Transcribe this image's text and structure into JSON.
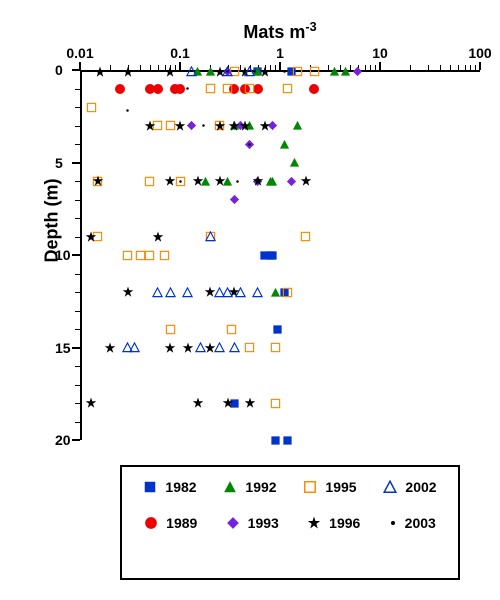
{
  "chart": {
    "type": "scatter",
    "x_axis": {
      "title_html": "Mats m<sup>-3</sup>",
      "scale": "log",
      "min": 0.01,
      "max": 100,
      "tick_values": [
        0.01,
        0.1,
        1,
        10,
        100
      ],
      "tick_labels": [
        "0.01",
        "0.1",
        "1",
        "10",
        "100"
      ],
      "position": "top",
      "label_fontsize": 18,
      "tick_fontsize": 14,
      "color": "#000000"
    },
    "y_axis": {
      "title": "Depth (m)",
      "scale": "linear",
      "min": 0,
      "max": 20,
      "reversed": true,
      "tick_values": [
        0,
        5,
        10,
        15,
        20
      ],
      "tick_labels": [
        "0",
        "5",
        "10",
        "15",
        "20"
      ],
      "minor_tick_step": 1,
      "label_fontsize": 18,
      "tick_fontsize": 14,
      "color": "#000000"
    },
    "background_color": "#ffffff",
    "series": [
      {
        "name": "1982",
        "marker": "square-filled",
        "color": "#0033cc",
        "size": 11,
        "points": [
          [
            0.7,
            10
          ],
          [
            0.8,
            10
          ],
          [
            0.85,
            10
          ],
          [
            1.1,
            12
          ],
          [
            0.95,
            14
          ],
          [
            0.35,
            18
          ],
          [
            0.9,
            20
          ],
          [
            1.2,
            20
          ],
          [
            0.6,
            0.1
          ],
          [
            1.3,
            0.1
          ]
        ]
      },
      {
        "name": "1989",
        "marker": "circle-filled",
        "color": "#ee0000",
        "size": 12,
        "points": [
          [
            0.025,
            1
          ],
          [
            0.05,
            1
          ],
          [
            0.06,
            1
          ],
          [
            0.09,
            1
          ],
          [
            0.1,
            1
          ],
          [
            0.35,
            1
          ],
          [
            0.45,
            1
          ],
          [
            0.6,
            1
          ],
          [
            2.2,
            1
          ]
        ]
      },
      {
        "name": "1992",
        "marker": "triangle-filled",
        "color": "#008800",
        "size": 11,
        "points": [
          [
            3.5,
            0.1
          ],
          [
            4.5,
            0.1
          ],
          [
            1.5,
            3
          ],
          [
            1.1,
            4
          ],
          [
            1.4,
            5
          ],
          [
            0.85,
            6
          ],
          [
            0.9,
            12
          ],
          [
            0.6,
            0.1
          ],
          [
            0.35,
            3
          ],
          [
            0.5,
            3
          ],
          [
            0.18,
            6
          ],
          [
            0.3,
            6
          ],
          [
            0.8,
            6
          ],
          [
            0.15,
            0.1
          ],
          [
            0.2,
            0.1
          ]
        ]
      },
      {
        "name": "1993",
        "marker": "diamond-filled",
        "color": "#7722dd",
        "size": 11,
        "points": [
          [
            6,
            0.1
          ],
          [
            0.5,
            4
          ],
          [
            0.35,
            7
          ],
          [
            0.85,
            3
          ],
          [
            0.4,
            3
          ],
          [
            0.6,
            6
          ],
          [
            0.3,
            0.1
          ],
          [
            1.3,
            6
          ],
          [
            0.13,
            3
          ]
        ]
      },
      {
        "name": "1995",
        "marker": "square-open",
        "color": "#ff8800",
        "size": 11,
        "points": [
          [
            0.013,
            2
          ],
          [
            0.015,
            6
          ],
          [
            0.015,
            9
          ],
          [
            0.03,
            10
          ],
          [
            0.04,
            10
          ],
          [
            0.05,
            10
          ],
          [
            0.07,
            10
          ],
          [
            0.08,
            14
          ],
          [
            0.33,
            14
          ],
          [
            0.9,
            18
          ],
          [
            1.2,
            12
          ],
          [
            0.2,
            1
          ],
          [
            0.3,
            1
          ],
          [
            0.5,
            1
          ],
          [
            1.2,
            1
          ],
          [
            1.5,
            0.1
          ],
          [
            2.2,
            0.1
          ],
          [
            0.06,
            3
          ],
          [
            0.08,
            3
          ],
          [
            0.25,
            3
          ],
          [
            0.05,
            6
          ],
          [
            0.1,
            6
          ],
          [
            0.2,
            9
          ],
          [
            1.8,
            9
          ],
          [
            0.5,
            15
          ],
          [
            0.9,
            15
          ],
          [
            0.35,
            0.1
          ]
        ]
      },
      {
        "name": "1996",
        "marker": "star-filled",
        "color": "#000000",
        "size": 12,
        "points": [
          [
            0.016,
            0.1
          ],
          [
            0.03,
            0.1
          ],
          [
            0.015,
            6
          ],
          [
            0.013,
            9
          ],
          [
            0.03,
            12
          ],
          [
            0.02,
            15
          ],
          [
            0.013,
            18
          ],
          [
            0.05,
            3
          ],
          [
            0.1,
            3
          ],
          [
            0.25,
            3
          ],
          [
            0.35,
            3
          ],
          [
            0.45,
            3
          ],
          [
            0.7,
            3
          ],
          [
            0.08,
            6
          ],
          [
            0.15,
            6
          ],
          [
            0.25,
            6
          ],
          [
            0.6,
            6
          ],
          [
            0.06,
            9
          ],
          [
            0.2,
            12
          ],
          [
            0.35,
            12
          ],
          [
            0.08,
            15
          ],
          [
            0.12,
            15
          ],
          [
            0.2,
            15
          ],
          [
            0.15,
            18
          ],
          [
            0.3,
            18
          ],
          [
            0.5,
            18
          ],
          [
            0.08,
            0.1
          ],
          [
            0.25,
            0.1
          ],
          [
            0.45,
            0.1
          ],
          [
            0.7,
            0.1
          ],
          [
            1.8,
            6
          ]
        ]
      },
      {
        "name": "2002",
        "marker": "triangle-open",
        "color": "#0033cc",
        "size": 11,
        "points": [
          [
            0.03,
            15
          ],
          [
            0.035,
            15
          ],
          [
            0.06,
            12
          ],
          [
            0.08,
            12
          ],
          [
            0.12,
            12
          ],
          [
            0.25,
            12
          ],
          [
            0.3,
            12
          ],
          [
            0.4,
            12
          ],
          [
            0.6,
            12
          ],
          [
            0.2,
            9
          ],
          [
            0.16,
            15
          ],
          [
            0.25,
            15
          ],
          [
            0.35,
            15
          ],
          [
            0.3,
            0.1
          ],
          [
            0.13,
            0.1
          ],
          [
            0.5,
            0.1
          ]
        ]
      },
      {
        "name": "2003",
        "marker": "dot-filled",
        "color": "#000000",
        "size": 5,
        "points": [
          [
            0.03,
            2.2
          ],
          [
            0.5,
            4
          ],
          [
            0.38,
            6
          ],
          [
            0.3,
            0.1
          ],
          [
            0.55,
            0.1
          ],
          [
            0.12,
            1
          ],
          [
            1.1,
            0.1
          ],
          [
            0.17,
            3
          ],
          [
            0.1,
            6
          ]
        ]
      }
    ],
    "legend": {
      "position": "bottom",
      "border_color": "#000000",
      "border_width": 2,
      "rows": [
        [
          {
            "series": "1982"
          },
          {
            "series": "1992"
          },
          {
            "series": "1995"
          },
          {
            "series": "2002"
          }
        ],
        [
          {
            "series": "1989"
          },
          {
            "series": "1993"
          },
          {
            "series": "1996"
          },
          {
            "series": "2003"
          }
        ]
      ]
    }
  }
}
